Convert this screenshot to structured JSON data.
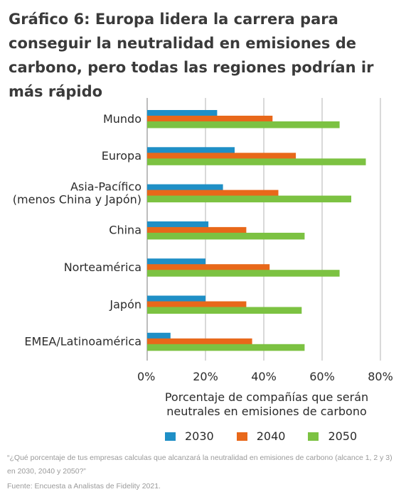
{
  "title": "Gráfico 6: Europa lidera la carrera para conseguir la neutralidad en emisiones de carbono, pero todas las regiones podrían ir más rápido",
  "chart_data": {
    "type": "bar",
    "orientation": "horizontal",
    "categories": [
      "Mundo",
      "Europa",
      "Asia-Pacífico\n(menos China y Japón)",
      "China",
      "Norteamérica",
      "Japón",
      "EMEA/Latinoamérica"
    ],
    "series": [
      {
        "name": "2030",
        "color": "#1f8fc6",
        "values": [
          24,
          30,
          26,
          21,
          20,
          20,
          8
        ]
      },
      {
        "name": "2040",
        "color": "#e8681a",
        "values": [
          43,
          51,
          45,
          34,
          42,
          34,
          36
        ]
      },
      {
        "name": "2050",
        "color": "#7cc242",
        "values": [
          66,
          75,
          70,
          54,
          66,
          53,
          54
        ]
      }
    ],
    "xlim": [
      0,
      80
    ],
    "xticks": [
      "0%",
      "20%",
      "40%",
      "60%",
      "80%"
    ],
    "xtick_values": [
      0,
      20,
      40,
      60,
      80
    ],
    "xlabel": "Porcentaje de compañías que serán neutrales en emisiones de carbono",
    "ylabel": "",
    "grid": true,
    "legend": "bottom"
  },
  "footnote_question": "“¿Qué porcentaje de tus empresas calculas que alcanzará la neutralidad en emisiones de carbono (alcance 1, 2 y 3) en 2030, 2040 y 2050?”",
  "footnote_source": "Fuente: Encuesta a Analistas de Fidelity 2021."
}
